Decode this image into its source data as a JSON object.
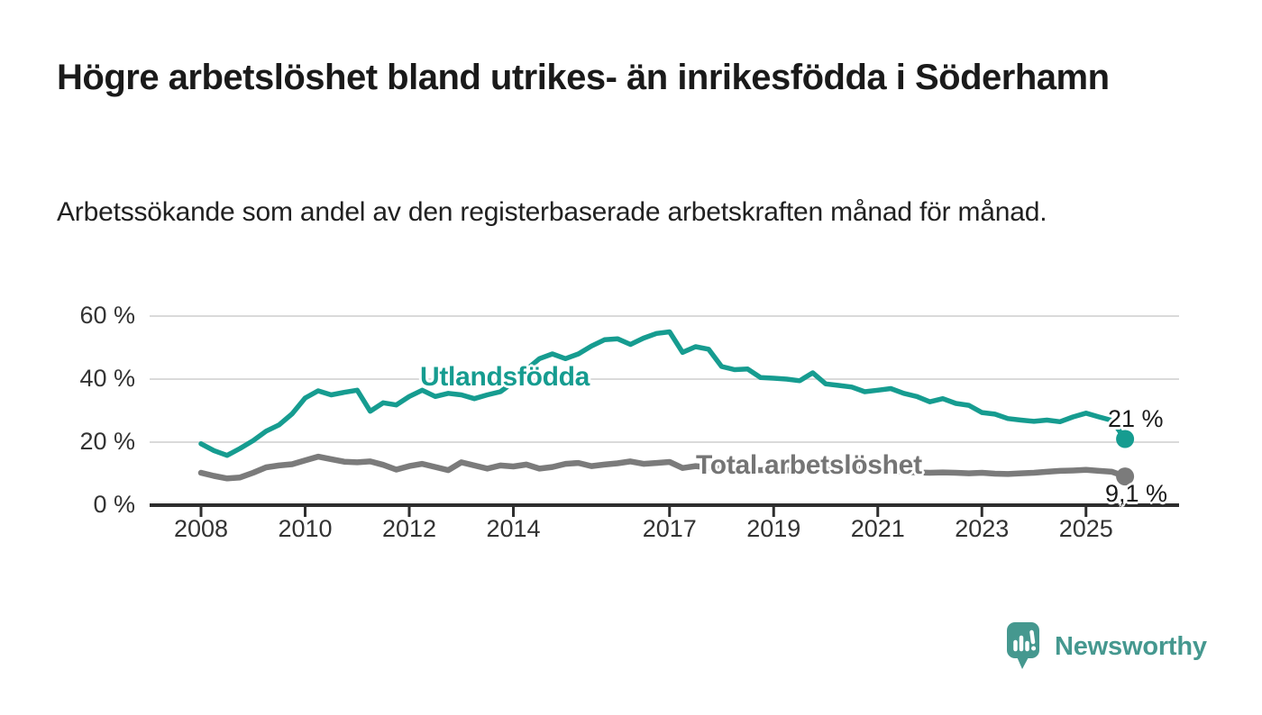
{
  "header": {
    "title": "Högre arbetslöshet bland utrikes- än inrikesfödda i Söderhamn",
    "subtitle": "Arbetssökande som andel av den registerbaserade arbetskraften månad för månad."
  },
  "branding": {
    "logo_text": "Newsworthy",
    "logo_icon": "newsworthy-speech-bubble-bar-chart-icon",
    "logo_color": "#45988f"
  },
  "chart_data": {
    "type": "line",
    "title": "Arbetssökande som andel av den registerbaserade arbetskraften månad för månad",
    "xlabel": "",
    "ylabel": "",
    "x_unit": "year (decimal; monthly series shown quarterly-sampled)",
    "xlim": [
      2007.0,
      2026.8
    ],
    "ylim": [
      0,
      62
    ],
    "grid": "horizontal",
    "grid_color": "#dadada",
    "axis_color": "#2e2e2e",
    "axis_text_color": "#333333",
    "x_ticks": [
      2008,
      2010,
      2012,
      2014,
      2017,
      2019,
      2021,
      2023,
      2025
    ],
    "x_tick_labels": [
      "2008",
      "2010",
      "2012",
      "2014",
      "2017",
      "2019",
      "2021",
      "2023",
      "2025"
    ],
    "y_ticks": [
      0,
      20,
      40,
      60
    ],
    "y_tick_labels": [
      "0 %",
      "20 %",
      "40 %",
      "60 %"
    ],
    "legend_position": "inline-labels-on-lines",
    "series": [
      {
        "name": "Utlandsfödda",
        "color": "#169c90",
        "stroke_width": 5.5,
        "end_value": 21,
        "end_label": "21 %",
        "points": [
          [
            2008.0,
            19.5
          ],
          [
            2008.25,
            17.3
          ],
          [
            2008.5,
            15.8
          ],
          [
            2008.75,
            18.0
          ],
          [
            2009.0,
            20.5
          ],
          [
            2009.25,
            23.5
          ],
          [
            2009.5,
            25.5
          ],
          [
            2009.75,
            29.0
          ],
          [
            2010.0,
            34.0
          ],
          [
            2010.25,
            36.3
          ],
          [
            2010.5,
            35.0
          ],
          [
            2010.75,
            35.8
          ],
          [
            2011.0,
            36.5
          ],
          [
            2011.25,
            29.8
          ],
          [
            2011.5,
            32.5
          ],
          [
            2011.75,
            31.8
          ],
          [
            2012.0,
            34.5
          ],
          [
            2012.25,
            36.5
          ],
          [
            2012.5,
            34.5
          ],
          [
            2012.75,
            35.5
          ],
          [
            2013.0,
            35.0
          ],
          [
            2013.25,
            33.8
          ],
          [
            2013.5,
            35.0
          ],
          [
            2013.75,
            36.0
          ],
          [
            2014.0,
            39.0
          ],
          [
            2014.25,
            43.0
          ],
          [
            2014.5,
            46.5
          ],
          [
            2014.75,
            48.0
          ],
          [
            2015.0,
            46.5
          ],
          [
            2015.25,
            48.0
          ],
          [
            2015.5,
            50.5
          ],
          [
            2015.75,
            52.5
          ],
          [
            2016.0,
            52.8
          ],
          [
            2016.25,
            51.0
          ],
          [
            2016.5,
            53.0
          ],
          [
            2016.75,
            54.5
          ],
          [
            2017.0,
            55.0
          ],
          [
            2017.25,
            48.5
          ],
          [
            2017.5,
            50.3
          ],
          [
            2017.75,
            49.5
          ],
          [
            2018.0,
            44.0
          ],
          [
            2018.25,
            43.0
          ],
          [
            2018.5,
            43.2
          ],
          [
            2018.75,
            40.5
          ],
          [
            2019.0,
            40.3
          ],
          [
            2019.25,
            40.0
          ],
          [
            2019.5,
            39.5
          ],
          [
            2019.75,
            42.0
          ],
          [
            2020.0,
            38.5
          ],
          [
            2020.25,
            38.0
          ],
          [
            2020.5,
            37.5
          ],
          [
            2020.75,
            36.0
          ],
          [
            2021.0,
            36.5
          ],
          [
            2021.25,
            37.0
          ],
          [
            2021.5,
            35.5
          ],
          [
            2021.75,
            34.5
          ],
          [
            2022.0,
            32.8
          ],
          [
            2022.25,
            33.8
          ],
          [
            2022.5,
            32.3
          ],
          [
            2022.75,
            31.7
          ],
          [
            2023.0,
            29.4
          ],
          [
            2023.25,
            28.9
          ],
          [
            2023.5,
            27.5
          ],
          [
            2023.75,
            27.0
          ],
          [
            2024.0,
            26.6
          ],
          [
            2024.25,
            27.0
          ],
          [
            2024.5,
            26.5
          ],
          [
            2024.75,
            28.0
          ],
          [
            2025.0,
            29.2
          ],
          [
            2025.25,
            28.0
          ],
          [
            2025.5,
            26.9
          ],
          [
            2025.75,
            21.0
          ]
        ]
      },
      {
        "name": "Total arbetslöshet",
        "color": "#7b7b7b",
        "stroke_width": 6.5,
        "end_value": 9.1,
        "end_label": "9,1 %",
        "points": [
          [
            2008.0,
            10.3
          ],
          [
            2008.25,
            9.3
          ],
          [
            2008.5,
            8.5
          ],
          [
            2008.75,
            8.8
          ],
          [
            2009.0,
            10.3
          ],
          [
            2009.25,
            12.0
          ],
          [
            2009.5,
            12.6
          ],
          [
            2009.75,
            13.0
          ],
          [
            2010.0,
            14.2
          ],
          [
            2010.25,
            15.4
          ],
          [
            2010.5,
            14.6
          ],
          [
            2010.75,
            13.8
          ],
          [
            2011.0,
            13.6
          ],
          [
            2011.25,
            13.9
          ],
          [
            2011.5,
            12.8
          ],
          [
            2011.75,
            11.3
          ],
          [
            2012.0,
            12.4
          ],
          [
            2012.25,
            13.1
          ],
          [
            2012.5,
            12.1
          ],
          [
            2012.75,
            11.1
          ],
          [
            2013.0,
            13.6
          ],
          [
            2013.25,
            12.6
          ],
          [
            2013.5,
            11.6
          ],
          [
            2013.75,
            12.6
          ],
          [
            2014.0,
            12.3
          ],
          [
            2014.25,
            12.9
          ],
          [
            2014.5,
            11.6
          ],
          [
            2014.75,
            12.1
          ],
          [
            2015.0,
            13.1
          ],
          [
            2015.25,
            13.4
          ],
          [
            2015.5,
            12.4
          ],
          [
            2015.75,
            12.9
          ],
          [
            2016.0,
            13.3
          ],
          [
            2016.25,
            13.9
          ],
          [
            2016.5,
            13.1
          ],
          [
            2016.75,
            13.4
          ],
          [
            2017.0,
            13.7
          ],
          [
            2017.25,
            11.8
          ],
          [
            2017.5,
            12.4
          ],
          [
            2017.75,
            12.0
          ],
          [
            2018.0,
            11.6
          ],
          [
            2018.25,
            11.9
          ],
          [
            2018.5,
            11.3
          ],
          [
            2018.75,
            11.1
          ],
          [
            2019.0,
            11.4
          ],
          [
            2019.25,
            11.1
          ],
          [
            2019.5,
            10.9
          ],
          [
            2019.75,
            11.3
          ],
          [
            2020.0,
            11.9
          ],
          [
            2020.25,
            12.3
          ],
          [
            2020.5,
            11.9
          ],
          [
            2020.75,
            11.4
          ],
          [
            2021.0,
            11.3
          ],
          [
            2021.25,
            11.1
          ],
          [
            2021.5,
            10.6
          ],
          [
            2021.75,
            10.4
          ],
          [
            2022.0,
            10.3
          ],
          [
            2022.25,
            10.4
          ],
          [
            2022.5,
            10.3
          ],
          [
            2022.75,
            10.1
          ],
          [
            2023.0,
            10.3
          ],
          [
            2023.25,
            10.0
          ],
          [
            2023.5,
            9.9
          ],
          [
            2023.75,
            10.1
          ],
          [
            2024.0,
            10.3
          ],
          [
            2024.25,
            10.6
          ],
          [
            2024.5,
            10.9
          ],
          [
            2024.75,
            11.0
          ],
          [
            2025.0,
            11.2
          ],
          [
            2025.25,
            10.9
          ],
          [
            2025.5,
            10.6
          ],
          [
            2025.75,
            9.1
          ]
        ]
      }
    ]
  }
}
